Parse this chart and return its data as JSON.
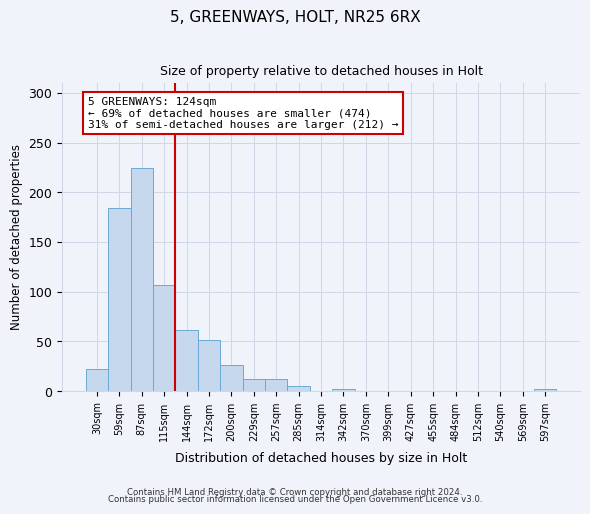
{
  "title": "5, GREENWAYS, HOLT, NR25 6RX",
  "subtitle": "Size of property relative to detached houses in Holt",
  "xlabel": "Distribution of detached houses by size in Holt",
  "ylabel": "Number of detached properties",
  "bin_labels": [
    "30sqm",
    "59sqm",
    "87sqm",
    "115sqm",
    "144sqm",
    "172sqm",
    "200sqm",
    "229sqm",
    "257sqm",
    "285sqm",
    "314sqm",
    "342sqm",
    "370sqm",
    "399sqm",
    "427sqm",
    "455sqm",
    "484sqm",
    "512sqm",
    "540sqm",
    "569sqm",
    "597sqm"
  ],
  "bar_values": [
    22,
    184,
    224,
    107,
    61,
    51,
    26,
    12,
    12,
    5,
    0,
    2,
    0,
    0,
    0,
    0,
    0,
    0,
    0,
    0,
    2
  ],
  "bar_color": "#c5d8ed",
  "bar_edge_color": "#6aaad4",
  "property_line_x": 3.5,
  "property_line_color": "#cc0000",
  "annotation_text": "5 GREENWAYS: 124sqm\n← 69% of detached houses are smaller (474)\n31% of semi-detached houses are larger (212) →",
  "annotation_box_color": "#ffffff",
  "annotation_box_edge_color": "#cc0000",
  "footer_line1": "Contains HM Land Registry data © Crown copyright and database right 2024.",
  "footer_line2": "Contains public sector information licensed under the Open Government Licence v3.0.",
  "ylim": [
    0,
    310
  ],
  "yticks": [
    0,
    50,
    100,
    150,
    200,
    250,
    300
  ],
  "grid_color": "#d0d8e8",
  "background_color": "#f0f4fa",
  "figsize": [
    6.0,
    5.0
  ],
  "dpi": 100
}
